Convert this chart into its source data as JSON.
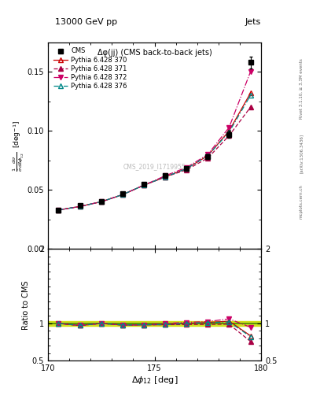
{
  "title_top": "13000 GeV pp",
  "title_right": "Jets",
  "plot_title": "Δφ(jj) (CMS back-to-back jets)",
  "watermark": "CMS_2019_I1719955",
  "right_label": "Rivet 3.1.10, ≥ 3.3M events",
  "arxiv_label": "[arXiv:1306.3436]",
  "mcplots_label": "mcplots.cern.ch",
  "xlabel": "Δφ₁₂ [deg]",
  "ratio_ylabel": "Ratio to CMS",
  "xdata": [
    170.5,
    171.5,
    172.5,
    173.5,
    174.5,
    175.5,
    176.5,
    177.5,
    178.5,
    179.5
  ],
  "cms_y": [
    0.033,
    0.037,
    0.04,
    0.047,
    0.055,
    0.062,
    0.068,
    0.078,
    0.097,
    0.158
  ],
  "cms_yerr": [
    0.001,
    0.001,
    0.001,
    0.001,
    0.001,
    0.001,
    0.001,
    0.002,
    0.003,
    0.005
  ],
  "p370_y": [
    0.033,
    0.036,
    0.04,
    0.046,
    0.054,
    0.061,
    0.068,
    0.079,
    0.1,
    0.132
  ],
  "p371_y": [
    0.033,
    0.036,
    0.04,
    0.046,
    0.054,
    0.061,
    0.067,
    0.077,
    0.096,
    0.12
  ],
  "p372_y": [
    0.033,
    0.036,
    0.04,
    0.046,
    0.054,
    0.062,
    0.069,
    0.08,
    0.103,
    0.15
  ],
  "p376_y": [
    0.033,
    0.036,
    0.04,
    0.046,
    0.054,
    0.061,
    0.068,
    0.079,
    0.099,
    0.13
  ],
  "xlim": [
    170.0,
    180.0
  ],
  "ylim": [
    0.0,
    0.35
  ],
  "ylim_display": [
    0.0,
    0.175
  ],
  "ratio_ylim": [
    0.5,
    2.0
  ],
  "color_cms": "#000000",
  "color_370": "#cc0000",
  "color_371": "#aa0044",
  "color_372": "#cc0066",
  "color_376": "#008888",
  "green_band_color": "#ccdd00",
  "green_line_color": "#448800",
  "background_color": "#ffffff"
}
